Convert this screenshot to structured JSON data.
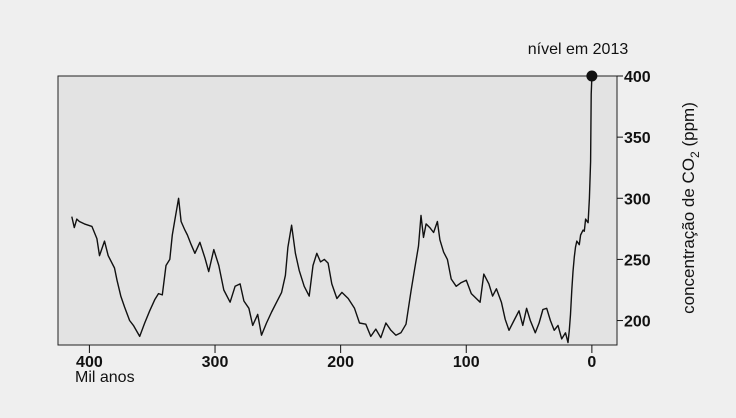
{
  "chart_data": {
    "type": "line",
    "xlabel": "Mil anos",
    "ylabel_parts": {
      "prefix": "concentração de CO",
      "subscript": "2",
      "suffix": " (ppm)"
    },
    "annotation": "nível em 2013",
    "xlim": [
      425,
      -20
    ],
    "ylim": [
      180,
      400
    ],
    "x_ticks": [
      400,
      300,
      200,
      100,
      0
    ],
    "x_tick_labels": [
      "400",
      "300",
      "200",
      "100",
      "0"
    ],
    "y_ticks": [
      200,
      250,
      300,
      350,
      400
    ],
    "y_tick_labels": [
      "200",
      "250",
      "300",
      "350",
      "400"
    ],
    "grid": false,
    "background_color": "#e3e3e3",
    "line_color": "#111111",
    "series": [
      {
        "x": [
          414,
          412,
          410,
          408,
          404,
          398,
          394,
          392,
          390,
          388,
          385,
          380,
          378,
          375,
          372,
          368,
          365,
          360,
          356,
          352,
          348,
          345,
          342,
          339,
          336,
          334,
          332,
          329,
          327,
          324,
          322,
          319,
          316,
          312,
          308,
          305,
          301,
          297,
          293,
          288,
          284,
          280,
          277,
          273,
          270,
          266,
          263,
          259,
          255,
          251,
          247,
          244,
          242,
          239,
          236,
          233,
          229,
          225,
          222,
          219,
          216,
          213,
          210,
          207,
          203,
          199,
          194,
          189,
          185,
          180,
          176,
          172,
          168,
          164,
          160,
          156,
          152,
          148,
          144,
          141,
          138,
          136,
          134,
          132,
          129,
          126,
          123,
          121,
          118,
          115,
          112,
          108,
          104,
          100,
          96,
          92,
          89,
          86,
          82,
          79,
          76,
          72,
          69,
          66,
          62,
          58,
          55,
          52,
          49,
          45,
          42,
          39,
          36,
          33,
          30,
          27,
          24,
          21,
          19,
          18,
          17,
          16,
          15,
          14,
          13,
          12,
          10,
          9,
          7,
          6,
          5,
          3,
          2,
          1,
          0.5,
          0
        ],
        "y": [
          285,
          276,
          283,
          281,
          279,
          277,
          267,
          253,
          259,
          265,
          253,
          243,
          233,
          220,
          211,
          200,
          196,
          187,
          198,
          208,
          217,
          222,
          221,
          245,
          250,
          270,
          282,
          300,
          281,
          274,
          270,
          262,
          255,
          264,
          251,
          240,
          258,
          245,
          225,
          215,
          228,
          230,
          216,
          210,
          196,
          205,
          188,
          198,
          207,
          215,
          223,
          237,
          260,
          278,
          255,
          241,
          228,
          220,
          245,
          255,
          248,
          250,
          247,
          230,
          218,
          223,
          218,
          210,
          198,
          197,
          187,
          193,
          186,
          198,
          192,
          188,
          190,
          197,
          224,
          243,
          261,
          286,
          268,
          279,
          276,
          272,
          281,
          266,
          256,
          250,
          234,
          228,
          231,
          233,
          222,
          218,
          215,
          238,
          230,
          220,
          226,
          215,
          201,
          192,
          200,
          208,
          196,
          210,
          200,
          190,
          198,
          209,
          210,
          200,
          192,
          196,
          185,
          190,
          182,
          192,
          205,
          225,
          240,
          252,
          260,
          265,
          262,
          270,
          274,
          273,
          283,
          280,
          300,
          330,
          385,
          400
        ]
      }
    ]
  }
}
